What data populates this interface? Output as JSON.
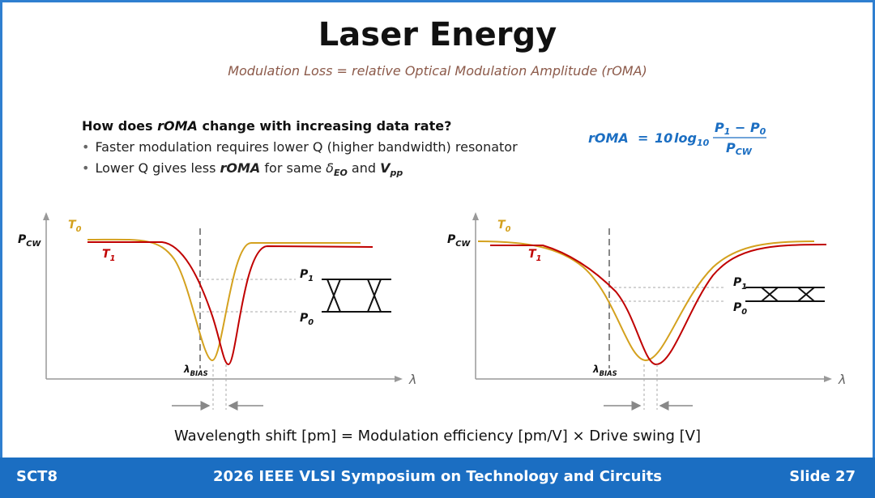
{
  "header": {
    "title": "Laser Energy",
    "subtitle": "Modulation Loss = relative Optical Modulation Amplitude (rOMA)"
  },
  "question": {
    "parts": [
      "How does ",
      "rOMA",
      " change with increasing data rate?"
    ]
  },
  "bullets": [
    {
      "parts": [
        "Faster modulation requires lower Q (higher bandwidth) resonator"
      ]
    },
    {
      "parts": [
        "Lower Q gives less ",
        "rOMA",
        " for same ",
        "δ",
        "EO",
        " and ",
        "V",
        "pp"
      ]
    }
  ],
  "formula": {
    "lhs": "rOMA",
    "eq": "=",
    "coef": "10",
    "log": "log",
    "base": "10",
    "numerator": [
      "P",
      "1",
      " − ",
      "P",
      "0"
    ],
    "denominator": [
      "P",
      "CW"
    ]
  },
  "plots": [
    {
      "y_label": [
        "P",
        "CW"
      ],
      "t0": [
        "T",
        "0"
      ],
      "t1": [
        "T",
        "1"
      ],
      "p1": [
        "P",
        "1"
      ],
      "p0": [
        "P",
        "0"
      ],
      "bias": [
        "λ",
        "BIAS"
      ],
      "x_label": "λ"
    },
    {
      "y_label": [
        "P",
        "CW"
      ],
      "t0": [
        "T",
        "0"
      ],
      "t1": [
        "T",
        "1"
      ],
      "p1": [
        "P",
        "1"
      ],
      "p0": [
        "P",
        "0"
      ],
      "bias": [
        "λ",
        "BIAS"
      ],
      "x_label": "λ"
    }
  ],
  "caption": "Wavelength shift [pm] = Modulation efficiency [pm/V] × Drive swing [V]",
  "footer": {
    "left": "SCT8",
    "center": "2026 IEEE VLSI Symposium on Technology and Circuits",
    "right": "Slide 27"
  }
}
